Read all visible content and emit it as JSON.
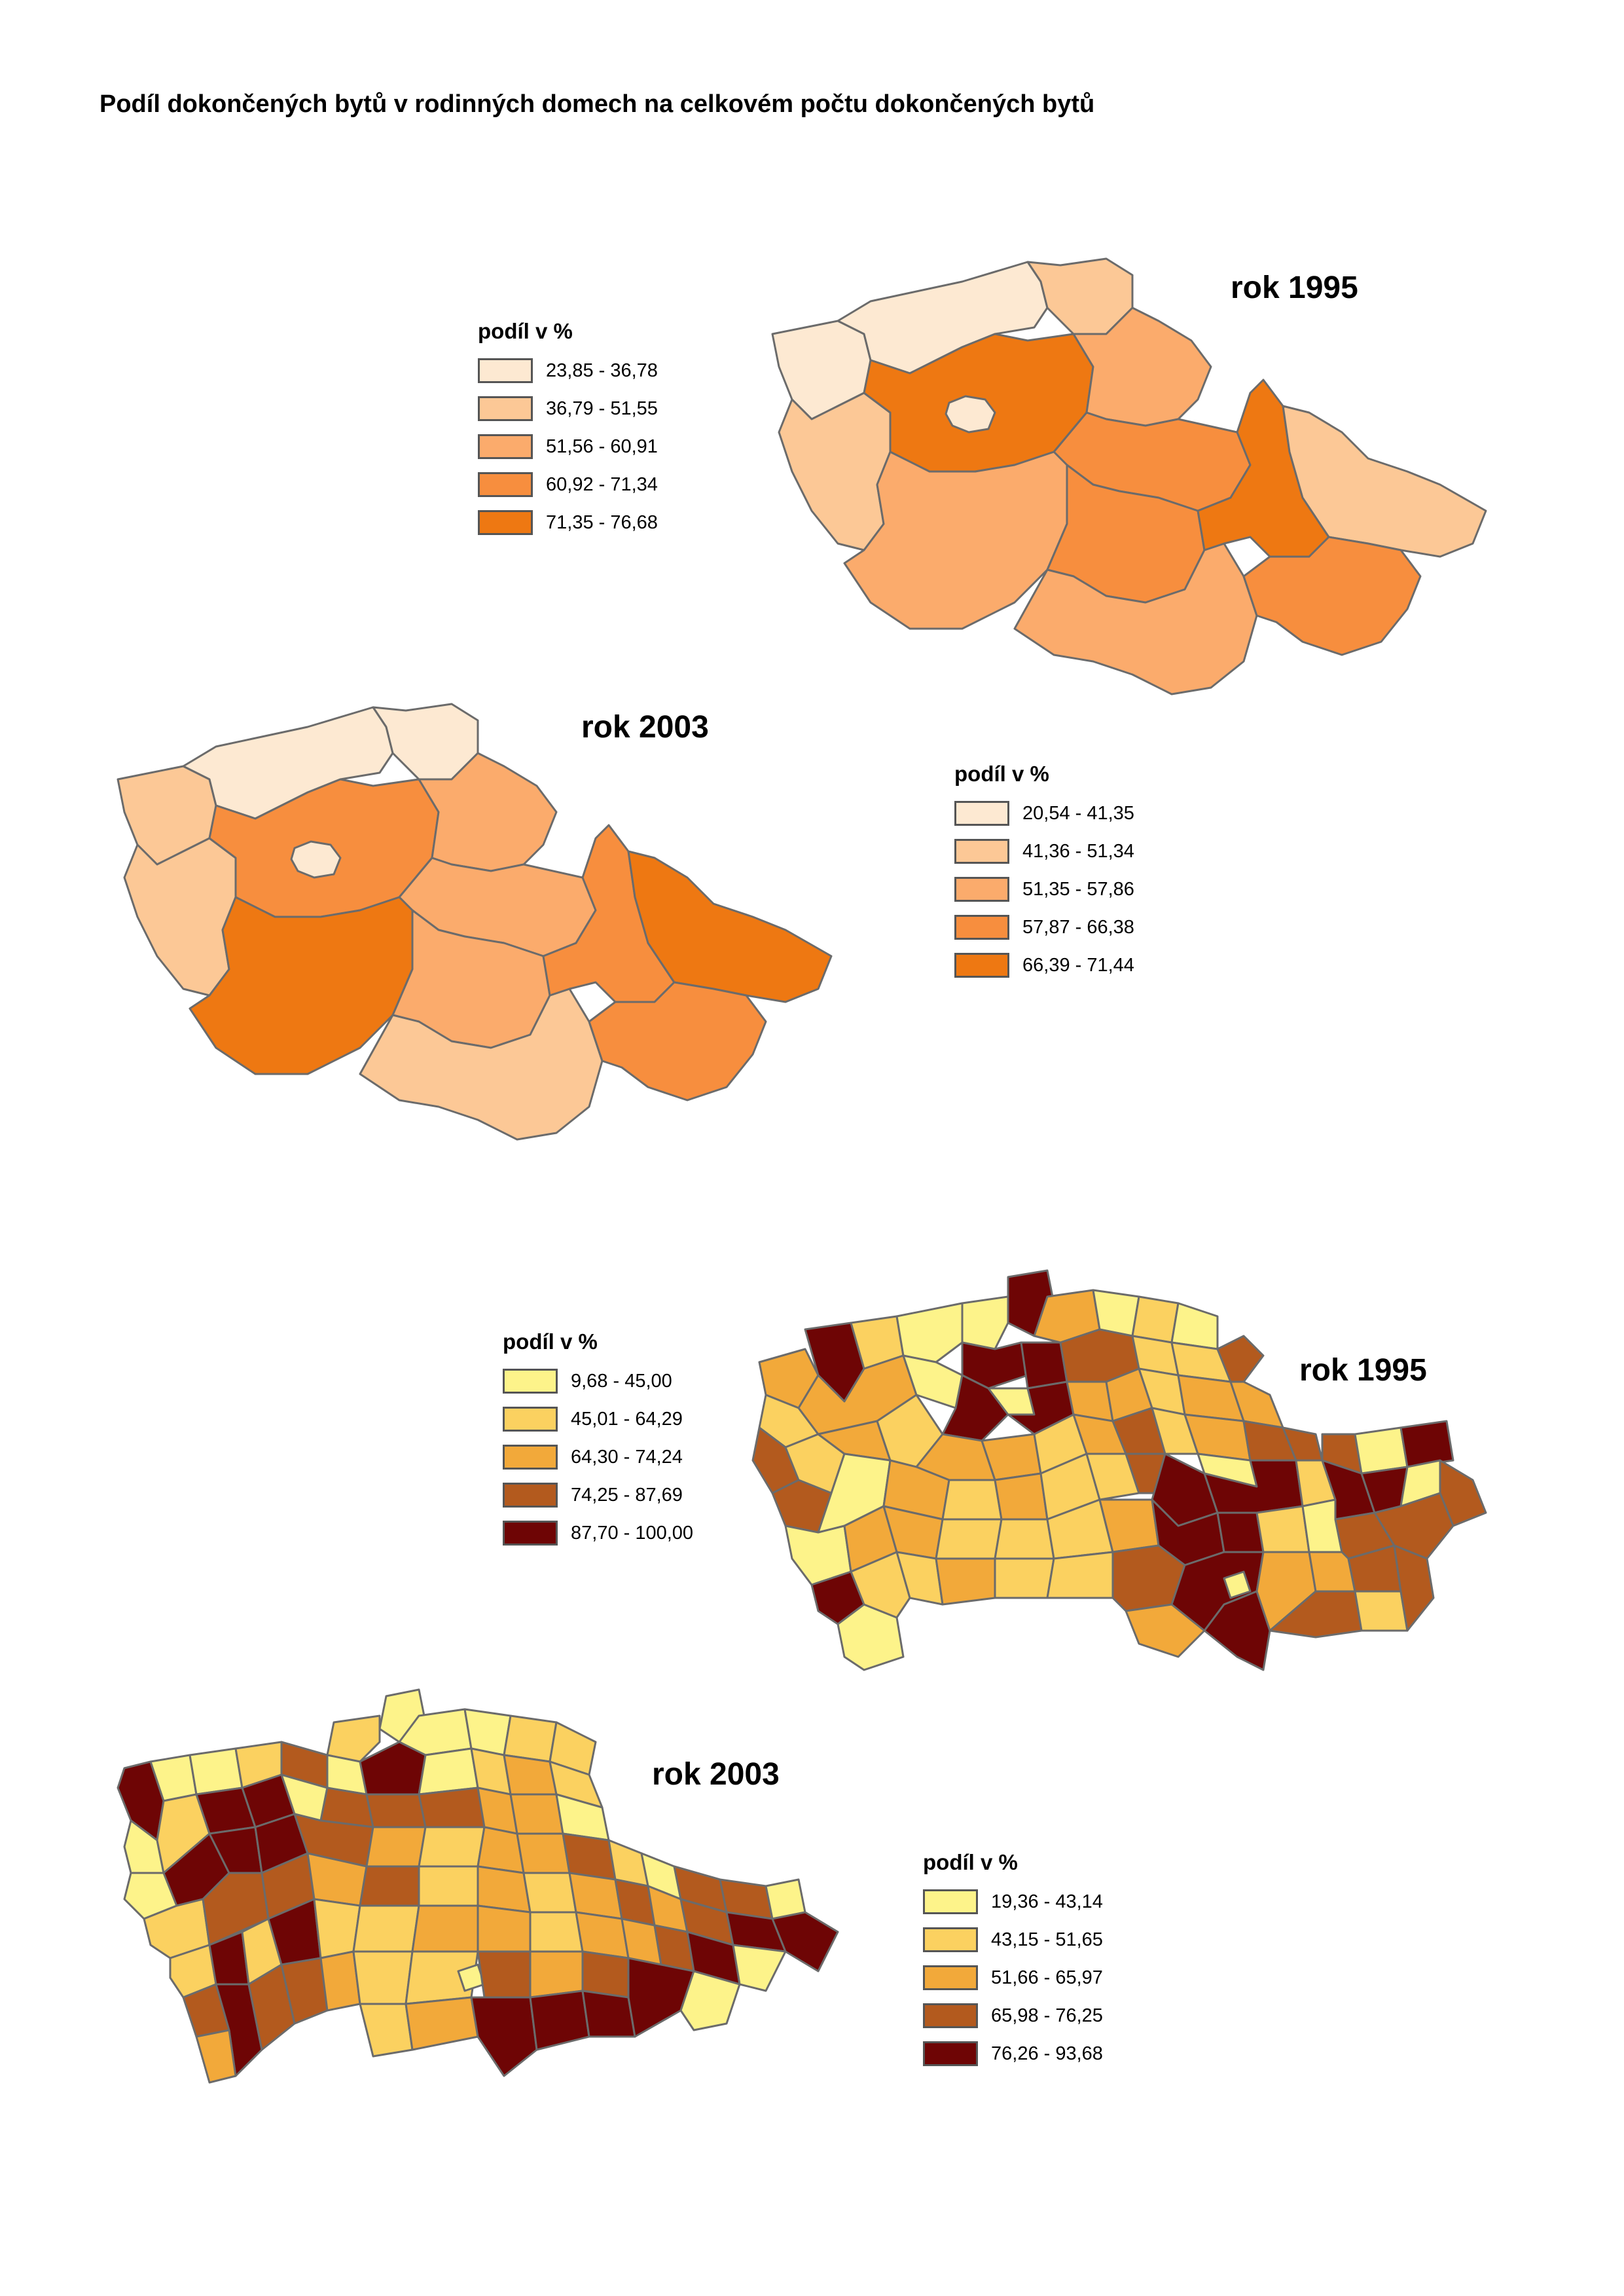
{
  "page": {
    "title": "Podíl dokončených bytů v rodinných domech na celkovém počtu dokončených bytů"
  },
  "maps": [
    {
      "id": "kraje-1995",
      "year_label": "rok 1995",
      "legend": {
        "title": "podíl v %",
        "classes": [
          {
            "label": "23,85 - 36,78",
            "color": "#fde9d2"
          },
          {
            "label": "36,79 - 51,55",
            "color": "#fcc896"
          },
          {
            "label": "51,56 - 60,91",
            "color": "#fbab6c"
          },
          {
            "label": "60,92 - 71,34",
            "color": "#f78e3e"
          },
          {
            "label": "71,35 - 76,68",
            "color": "#ee7812"
          }
        ]
      }
    },
    {
      "id": "kraje-2003",
      "year_label": "rok 2003",
      "legend": {
        "title": "podíl v %",
        "classes": [
          {
            "label": "20,54 - 41,35",
            "color": "#fde9d2"
          },
          {
            "label": "41,36 - 51,34",
            "color": "#fcc896"
          },
          {
            "label": "51,35 - 57,86",
            "color": "#fbab6c"
          },
          {
            "label": "57,87 - 66,38",
            "color": "#f78e3e"
          },
          {
            "label": "66,39 - 71,44",
            "color": "#ee7812"
          }
        ]
      }
    },
    {
      "id": "okresy-1995",
      "year_label": "rok 1995",
      "legend": {
        "title": "podíl v %",
        "classes": [
          {
            "label": "9,68 - 45,00",
            "color": "#fdf38a"
          },
          {
            "label": "45,01 - 64,29",
            "color": "#fbd160"
          },
          {
            "label": "64,30 - 74,24",
            "color": "#f2a93a"
          },
          {
            "label": "74,25 - 87,69",
            "color": "#b35a1e"
          },
          {
            "label": "87,70 - 100,00",
            "color": "#6e0505"
          }
        ]
      }
    },
    {
      "id": "okresy-2003",
      "year_label": "rok 2003",
      "legend": {
        "title": "podíl v %",
        "classes": [
          {
            "label": "19,36 - 43,14",
            "color": "#fdf38a"
          },
          {
            "label": "43,15 - 51,65",
            "color": "#fbd160"
          },
          {
            "label": "51,66 - 65,97",
            "color": "#f2a93a"
          },
          {
            "label": "65,98 - 76,25",
            "color": "#b35a1e"
          },
          {
            "label": "76,26 - 93,68",
            "color": "#6e0505"
          }
        ]
      }
    }
  ]
}
